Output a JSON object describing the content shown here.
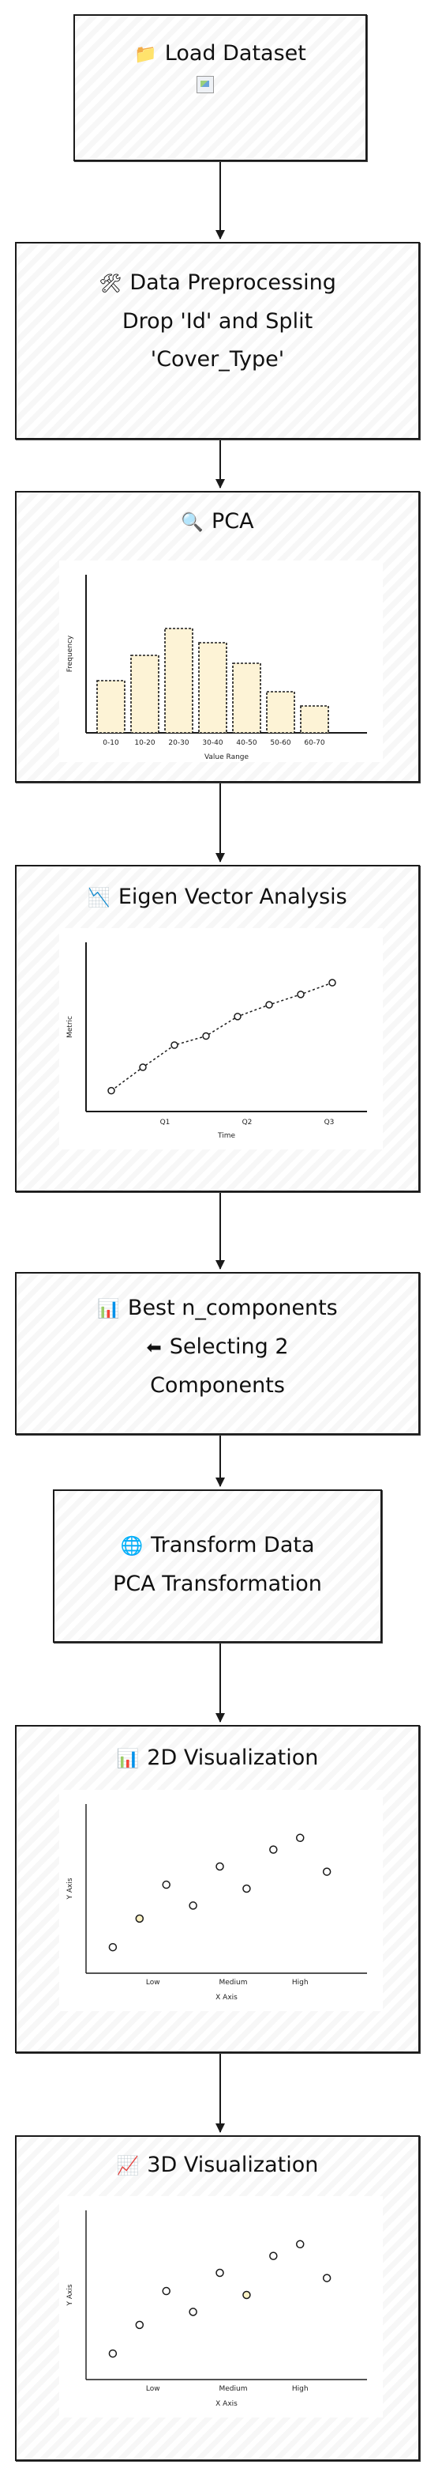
{
  "nodes": [
    {
      "id": "load-dataset",
      "icon": "folder-icon",
      "glyph": "📁",
      "lines": [
        "Load Dataset"
      ]
    },
    {
      "id": "data-preprocessing",
      "icon": "tools-icon",
      "glyph": "🛠",
      "lines": [
        "Data Preprocessing",
        "Drop 'Id' and Split",
        "'Cover_Type'"
      ]
    },
    {
      "id": "pca",
      "icon": "magnifier-icon",
      "glyph": "🔍",
      "lines": [
        "PCA"
      ]
    },
    {
      "id": "eigen-vector-analysis",
      "icon": "chart-decreasing-icon",
      "glyph": "📉",
      "lines": [
        "Eigen Vector Analysis"
      ]
    },
    {
      "id": "best-n-components",
      "icon": "bar-chart-icon",
      "glyph": "📊",
      "lines": [
        "Best n_components",
        "Selecting 2",
        "Components"
      ],
      "line_icons": {
        "1": {
          "icon": "left-arrow-icon",
          "glyph": "⬅"
        }
      }
    },
    {
      "id": "transform-data",
      "icon": "globe-icon",
      "glyph": "🌐",
      "lines": [
        "Transform Data",
        "PCA Transformation"
      ]
    },
    {
      "id": "2d-visualization",
      "icon": "bar-chart-icon",
      "glyph": "📊",
      "lines": [
        "2D Visualization"
      ]
    },
    {
      "id": "3d-visualization",
      "icon": "chart-increasing-icon",
      "glyph": "📈",
      "lines": [
        "3D Visualization"
      ]
    }
  ],
  "edges": [
    [
      "load-dataset",
      "data-preprocessing"
    ],
    [
      "data-preprocessing",
      "pca"
    ],
    [
      "pca",
      "eigen-vector-analysis"
    ],
    [
      "eigen-vector-analysis",
      "best-n-components"
    ],
    [
      "best-n-components",
      "transform-data"
    ],
    [
      "transform-data",
      "2d-visualization"
    ],
    [
      "2d-visualization",
      "3d-visualization"
    ]
  ],
  "chart_data": [
    {
      "type": "bar",
      "node": "pca",
      "categories": [
        "0-10",
        "10-20",
        "20-30",
        "30-40",
        "40-50",
        "50-60",
        "60-70"
      ],
      "values": [
        33,
        49,
        66,
        57,
        44,
        26,
        17
      ],
      "xlabel": "Value Range",
      "ylabel": "Frequency",
      "ylim": [
        0,
        100
      ],
      "bar_color": "#fdf3d6"
    },
    {
      "type": "line",
      "node": "eigen-vector-analysis",
      "x": [
        0,
        1,
        2,
        3,
        4,
        5,
        6,
        7
      ],
      "values": [
        16,
        34,
        51,
        58,
        73,
        82,
        90,
        99
      ],
      "x_ticks": [
        {
          "label": "Q1",
          "at": 1.7
        },
        {
          "label": "Q2",
          "at": 4.3
        },
        {
          "label": "Q3",
          "at": 6.9
        }
      ],
      "xlabel": "Time",
      "ylabel": "Metric",
      "xlim": [
        -0.8,
        8.1
      ],
      "ylim": [
        0,
        130
      ]
    },
    {
      "type": "scatter",
      "node": "2d-visualization",
      "points": [
        [
          0,
          20
        ],
        [
          1,
          42
        ],
        [
          2,
          68
        ],
        [
          3,
          52
        ],
        [
          4,
          82
        ],
        [
          5,
          65
        ],
        [
          6,
          95
        ],
        [
          7,
          104
        ],
        [
          8,
          78
        ]
      ],
      "highlight": [
        1
      ],
      "x_ticks": [
        {
          "label": "Low",
          "at": 1.5
        },
        {
          "label": "Medium",
          "at": 4.5
        },
        {
          "label": "High",
          "at": 7.0
        }
      ],
      "xlabel": "X Axis",
      "ylabel": "Y Axis",
      "xlim": [
        -1,
        9.5
      ],
      "ylim": [
        0,
        130
      ]
    },
    {
      "type": "scatter",
      "node": "3d-visualization",
      "points": [
        [
          0,
          20
        ],
        [
          1,
          42
        ],
        [
          2,
          68
        ],
        [
          3,
          52
        ],
        [
          4,
          82
        ],
        [
          5,
          65
        ],
        [
          6,
          95
        ],
        [
          7,
          104
        ],
        [
          8,
          78
        ]
      ],
      "highlight": [
        5
      ],
      "x_ticks": [
        {
          "label": "Low",
          "at": 1.5
        },
        {
          "label": "Medium",
          "at": 4.5
        },
        {
          "label": "High",
          "at": 7.0
        }
      ],
      "xlabel": "X Axis",
      "ylabel": "Y Axis",
      "xlim": [
        -1,
        9.5
      ],
      "ylim": [
        0,
        130
      ]
    }
  ]
}
